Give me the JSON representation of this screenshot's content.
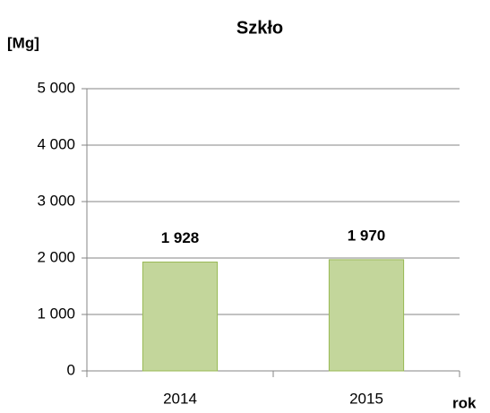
{
  "chart_data": {
    "type": "bar",
    "title": "Szkło",
    "y_axis_label": "[Mg]",
    "x_axis_label": "rok",
    "categories": [
      "2014",
      "2015"
    ],
    "values": [
      1928,
      1970
    ],
    "value_labels": [
      "1 928",
      "1 970"
    ],
    "color": "#c3d69b",
    "edge_color": "#98b954",
    "ylim": [
      0,
      5000
    ],
    "yticks": [
      0,
      {
        "value": 1000,
        "label": "1 000"
      },
      {
        "value": 2000,
        "label": "2 000"
      },
      {
        "value": 3000,
        "label": "3 000"
      },
      {
        "value": 4000,
        "label": "4 000"
      },
      {
        "value": 5000,
        "label": "5 000"
      }
    ],
    "grid": true
  }
}
